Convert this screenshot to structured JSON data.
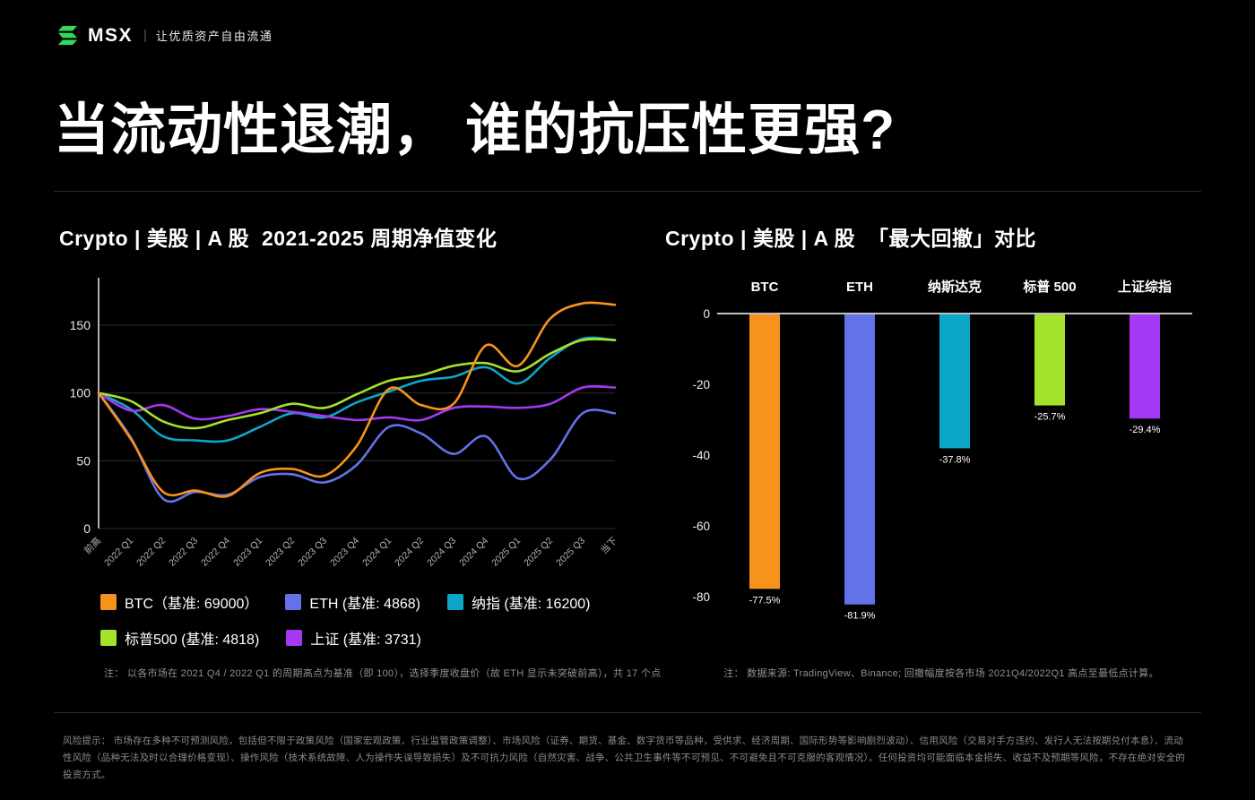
{
  "brand": {
    "name": "MSX",
    "separator": "|",
    "tagline": "让优质资产自由流通",
    "accent_color": "#35D757"
  },
  "headline": "当流动性退潮， 谁的抗压性更强?",
  "chart_data": [
    {
      "type": "line",
      "title": "Crypto | 美股 | A 股  2021-2025 周期净值变化",
      "x": [
        "前高",
        "2022 Q1",
        "2022 Q2",
        "2022 Q3",
        "2022 Q4",
        "2023 Q1",
        "2023 Q2",
        "2023 Q3",
        "2023 Q4",
        "2024 Q1",
        "2024 Q2",
        "2024 Q3",
        "2024 Q4",
        "2025 Q1",
        "2025 Q2",
        "2025 Q3",
        "当下"
      ],
      "series": [
        {
          "name": "BTC（基准: 69000）",
          "color": "#F7931A",
          "values": [
            100,
            66,
            27,
            28,
            24,
            41,
            44,
            39,
            61,
            103,
            91,
            92,
            135,
            120,
            155,
            166,
            165
          ]
        },
        {
          "name": "ETH (基准: 4868)",
          "color": "#6372E8",
          "values": [
            100,
            67,
            22,
            27,
            25,
            38,
            40,
            34,
            47,
            75,
            70,
            55,
            68,
            37,
            51,
            85,
            85
          ]
        },
        {
          "name": "纳指 (基准: 16200)",
          "color": "#0CA6C9",
          "values": [
            100,
            88,
            68,
            65,
            65,
            75,
            85,
            82,
            93,
            101,
            109,
            112,
            119,
            107,
            126,
            140,
            139
          ]
        },
        {
          "name": "标普500 (基准: 4818)",
          "color": "#A5E22B",
          "values": [
            100,
            94,
            79,
            74,
            80,
            85,
            92,
            89,
            99,
            109,
            113,
            120,
            122,
            116,
            129,
            139,
            139
          ]
        },
        {
          "name": "上证 (基准: 3731)",
          "color": "#A538F2",
          "values": [
            100,
            87,
            91,
            81,
            83,
            88,
            86,
            83,
            80,
            82,
            80,
            89,
            90,
            89,
            92,
            104,
            104
          ]
        }
      ],
      "ylim": [
        0,
        181
      ],
      "yticks": [
        0,
        50,
        100,
        150
      ],
      "grid": true,
      "legend_position": "bottom",
      "note": "注： 以各市场在 2021 Q4 / 2022 Q1 的周期高点为基准（即 100），选择季度收盘价（故 ETH 显示未突破前高），共 17 个点"
    },
    {
      "type": "bar",
      "title": "Crypto | 美股 | A 股  「最大回撤」对比",
      "categories": [
        "BTC",
        "ETH",
        "纳斯达克",
        "标普 500",
        "上证综指"
      ],
      "values": [
        -77.5,
        -81.9,
        -37.8,
        -25.7,
        -29.4
      ],
      "value_labels": [
        "-77.5%",
        "-81.9%",
        "-37.8%",
        "-25.7%",
        "-29.4%"
      ],
      "colors": [
        "#F7931A",
        "#6372E8",
        "#0CA6C9",
        "#A5E22B",
        "#A538F2"
      ],
      "ylim": [
        0,
        -85
      ],
      "yticks": [
        0,
        -20,
        -40,
        -60,
        -80
      ],
      "grid": false,
      "note": "注： 数据来源: TradingView、Binance; 回撤幅度按各市场 2021Q4/2022Q1 高点至最低点计算。"
    }
  ],
  "footer": {
    "risk_text": "风险提示： 市场存在多种不可预测风险，包括但不限于政策风险（国家宏观政策、行业监管政策调整）、市场风险（证券、期货、基金、数字货币等品种，受供求、经济周期、国际形势等影响剧烈波动）、信用风险（交易对手方违约、发行人无法按期兑付本息）、流动性风险（品种无法及时以合理价格变现）、操作风险（技术系统故障、人为操作失误导致损失）及不可抗力风险（自然灾害、战争、公共卫生事件等不可预见、不可避免且不可克服的客观情况）。任何投资均可能面临本金损失、收益不及预期等风险，不存在绝对安全的投资方式。"
  }
}
